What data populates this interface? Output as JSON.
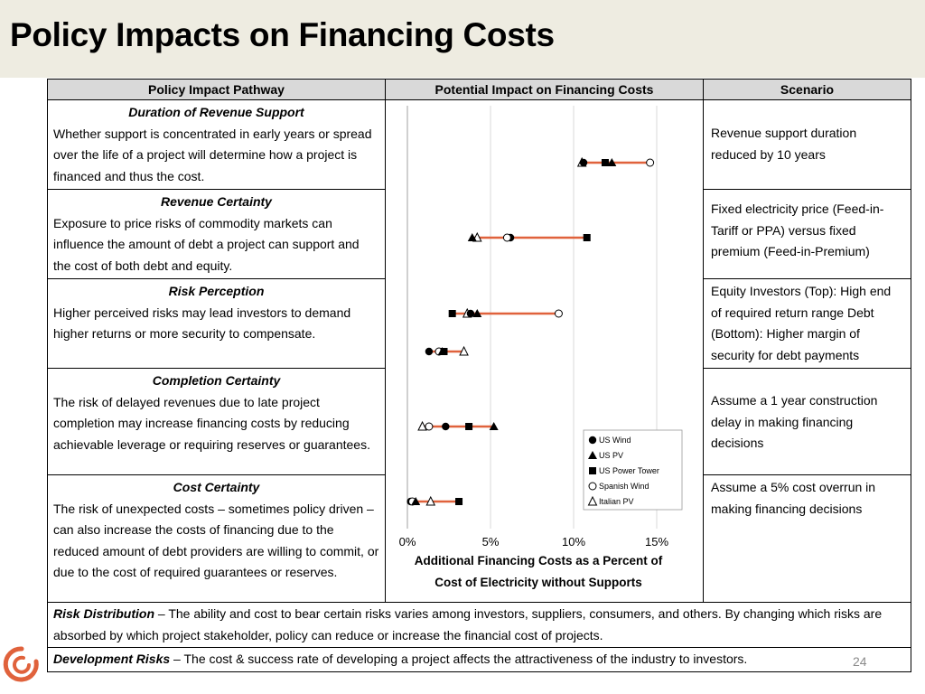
{
  "title": "Policy Impacts on Financing Costs",
  "headers": {
    "pathway": "Policy Impact Pathway",
    "impact": "Potential Impact on Financing Costs",
    "scenario": "Scenario"
  },
  "rows": [
    {
      "name": "Duration of Revenue Support",
      "description": "Whether support is concentrated in early years or spread over the life of a project will determine how a project is financed and thus the cost.",
      "scenario": "Revenue support duration reduced by 10 years"
    },
    {
      "name": "Revenue Certainty",
      "description": "Exposure to price risks of commodity markets can influence the amount of debt a project can support and the cost of both debt and equity.",
      "scenario": "Fixed electricity price (Feed-in-Tariff or PPA) versus fixed premium (Feed-in-Premium)"
    },
    {
      "name": "Risk Perception",
      "description": "Higher perceived risks may lead investors to demand higher returns or more security to compensate.",
      "scenario": "Equity Investors (Top): High end of required return range Debt (Bottom): Higher margin of security for debt payments"
    },
    {
      "name": "Completion Certainty",
      "description": "The risk of delayed revenues due to late project completion may increase financing costs by reducing achievable leverage or requiring reserves or guarantees.",
      "scenario": "Assume a 1 year construction delay in making financing decisions"
    },
    {
      "name": "Cost Certainty",
      "description": "The risk of unexpected costs – sometimes policy driven – can also increase the costs of financing due to the reduced amount of debt providers are willing to commit, or due to the cost of required guarantees or reserves.",
      "scenario": "Assume a 5% cost overrun in making financing decisions"
    }
  ],
  "footer_rows": [
    {
      "term": "Risk Distribution",
      "text": " – The ability and cost to bear certain risks varies among investors, suppliers, consumers, and others.  By changing which risks are absorbed by which project stakeholder, policy can reduce or increase the financial cost of projects."
    },
    {
      "term": "Development Risks",
      "text": " – The cost & success rate of developing a project affects the attractiveness of the industry to investors."
    }
  ],
  "page_number": "24",
  "colors": {
    "range_line": "#e0623c",
    "gridline": "#d9d9d9",
    "title_bar": "#eeece1",
    "header_fill": "#d9d9d9"
  },
  "chart_data": {
    "type": "scatter",
    "xlabel": "Additional Financing Costs as a Percent of Cost of Electricity without Supports",
    "ylabel": "",
    "xlim": [
      0,
      15
    ],
    "xticks": [
      0,
      5,
      10,
      15
    ],
    "xtick_labels": [
      "0%",
      "5%",
      "10%",
      "15%"
    ],
    "grid": true,
    "legend_position": "bottom-right",
    "series": [
      {
        "name": "US Wind",
        "marker": "filled-circle"
      },
      {
        "name": "US PV",
        "marker": "filled-triangle"
      },
      {
        "name": "US Power Tower",
        "marker": "filled-square"
      },
      {
        "name": "Spanish Wind",
        "marker": "open-circle"
      },
      {
        "name": "Italian PV",
        "marker": "open-triangle"
      }
    ],
    "rows": [
      {
        "category": "Duration of Revenue Support",
        "values": {
          "US Wind": 10.6,
          "US PV": 12.3,
          "US Power Tower": 11.9,
          "Spanish Wind": 14.6,
          "Italian PV": 10.5
        }
      },
      {
        "category": "Revenue Certainty",
        "values": {
          "US Wind": 6.2,
          "US PV": 3.9,
          "US Power Tower": 10.8,
          "Spanish Wind": 6.0,
          "Italian PV": 4.2
        }
      },
      {
        "category": "Risk Perception - Equity",
        "values": {
          "US Wind": 3.8,
          "US PV": 4.2,
          "US Power Tower": 2.7,
          "Spanish Wind": 9.1,
          "Italian PV": 3.6
        }
      },
      {
        "category": "Risk Perception - Debt",
        "values": {
          "US Wind": 1.3,
          "US PV": 2.1,
          "US Power Tower": 2.2,
          "Spanish Wind": 1.9,
          "Italian PV": 3.4
        }
      },
      {
        "category": "Completion Certainty",
        "values": {
          "US Wind": 2.3,
          "US PV": 5.2,
          "US Power Tower": 3.7,
          "Spanish Wind": 1.3,
          "Italian PV": 0.9
        }
      },
      {
        "category": "Cost Certainty",
        "values": {
          "US Wind": 0.2,
          "US PV": 0.5,
          "US Power Tower": 3.1,
          "Spanish Wind": 0.3,
          "Italian PV": 1.4
        }
      }
    ]
  }
}
